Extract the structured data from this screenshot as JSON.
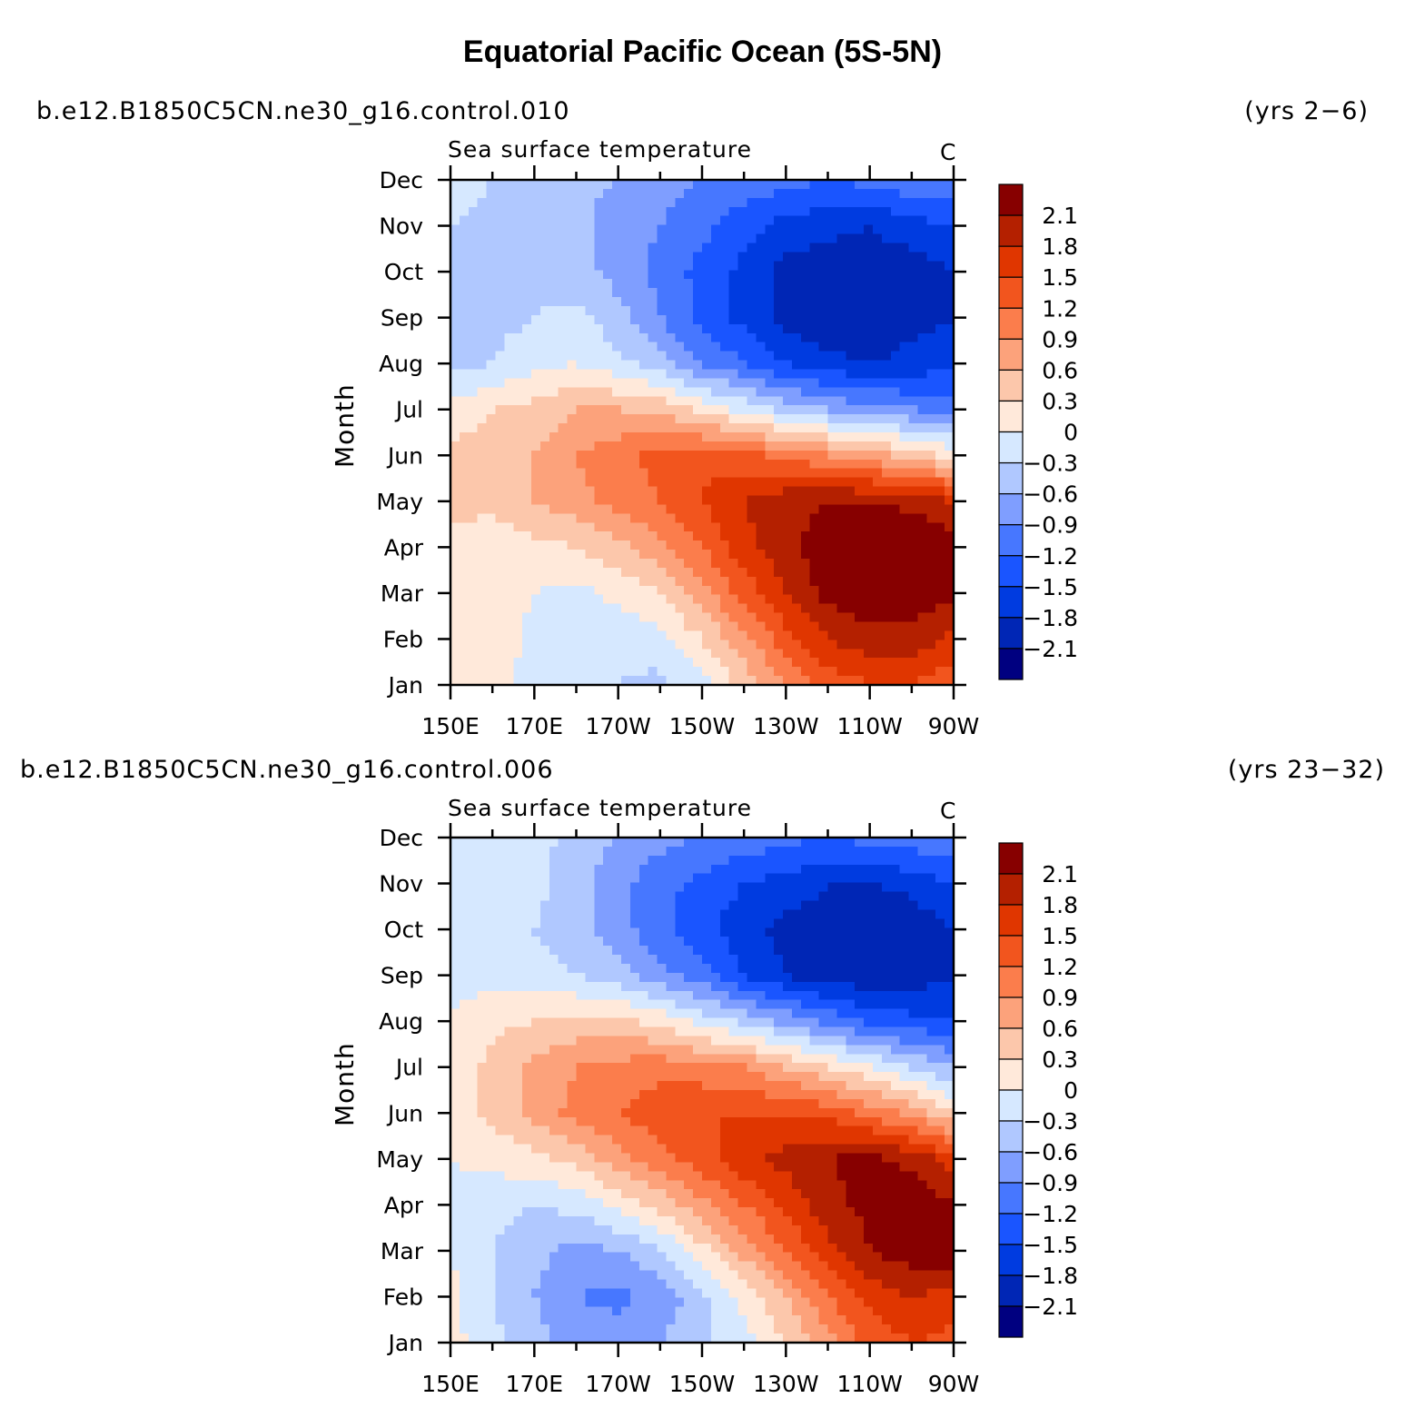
{
  "title": "Equatorial Pacific Ocean (5S-5N)",
  "panels": [
    {
      "case": "b.e12.B1850C5CN.ne30_g16.control.010",
      "years": "(yrs 2−6)",
      "variable": "Sea surface temperature",
      "units": "C",
      "ylabel": "Month"
    },
    {
      "case": "b.e12.B1850C5CN.ne30_g16.control.006",
      "years": "(yrs 23−32)",
      "variable": "Sea surface temperature",
      "units": "C",
      "ylabel": "Month"
    }
  ],
  "chart_data": [
    {
      "type": "heatmap",
      "title": "Sea surface temperature",
      "xlabel": "",
      "ylabel": "Month",
      "units": "C",
      "x_ticks": [
        "150E",
        "170E",
        "170W",
        "150W",
        "130W",
        "110W",
        "90W"
      ],
      "y_ticks": [
        "Jan",
        "Feb",
        "Mar",
        "Apr",
        "May",
        "Jun",
        "Jul",
        "Aug",
        "Sep",
        "Oct",
        "Nov",
        "Dec"
      ],
      "levels": [
        -2.1,
        -1.8,
        -1.5,
        -1.2,
        -0.9,
        -0.6,
        -0.3,
        0,
        0.3,
        0.6,
        0.9,
        1.2,
        1.5,
        1.8,
        2.1
      ],
      "colorbar_labels": [
        "2.1",
        "1.8",
        "1.5",
        "1.2",
        "0.9",
        "0.6",
        "0.3",
        "0",
        "−0.3",
        "−0.6",
        "−0.9",
        "−1.2",
        "−1.5",
        "−1.8",
        "−2.1"
      ],
      "colors": [
        "#000080",
        "#0026b5",
        "#003be0",
        "#1a55ff",
        "#4777ff",
        "#7f9eff",
        "#b0c8ff",
        "#d6e8ff",
        "#ffe9da",
        "#fcc7ab",
        "#fca27b",
        "#fb7d4c",
        "#f2551e",
        "#e03600",
        "#b42000",
        "#870000"
      ],
      "grid_lon": [
        150,
        160,
        170,
        180,
        190,
        200,
        210,
        220,
        230,
        240,
        250,
        260,
        270
      ],
      "grid_month": [
        1,
        2,
        3,
        4,
        5,
        6,
        7,
        8,
        9,
        10,
        11,
        12
      ],
      "values": [
        [
          0.1,
          0.1,
          -0.1,
          -0.2,
          -0.3,
          -0.4,
          -0.1,
          0.4,
          0.9,
          1.3,
          1.5,
          1.5,
          1.3
        ],
        [
          0.1,
          0.2,
          -0.1,
          -0.2,
          -0.2,
          -0.1,
          0.3,
          0.8,
          1.4,
          1.8,
          2.0,
          2.0,
          1.7
        ],
        [
          0.2,
          0.2,
          0.0,
          -0.1,
          0.1,
          0.3,
          0.8,
          1.3,
          1.8,
          2.2,
          2.3,
          2.3,
          2.2
        ],
        [
          0.2,
          0.1,
          0.2,
          0.3,
          0.5,
          0.8,
          1.2,
          1.7,
          2.0,
          2.3,
          2.4,
          2.4,
          2.3
        ],
        [
          0.4,
          0.4,
          0.6,
          0.8,
          1.0,
          1.2,
          1.5,
          1.8,
          2.0,
          2.1,
          2.1,
          2.0,
          1.8
        ],
        [
          0.4,
          0.4,
          0.6,
          0.9,
          1.1,
          1.3,
          1.4,
          1.3,
          1.1,
          0.9,
          0.7,
          0.5,
          0.2
        ],
        [
          0.1,
          0.3,
          0.4,
          0.6,
          0.6,
          0.5,
          0.2,
          -0.1,
          -0.4,
          -0.6,
          -0.8,
          -0.9,
          -1.0
        ],
        [
          -0.4,
          -0.3,
          -0.1,
          0.0,
          -0.2,
          -0.5,
          -0.9,
          -1.2,
          -1.5,
          -1.7,
          -1.8,
          -1.7,
          -1.6
        ],
        [
          -0.5,
          -0.4,
          -0.3,
          -0.2,
          -0.5,
          -0.9,
          -1.3,
          -1.6,
          -1.9,
          -2.1,
          -2.1,
          -1.9,
          -1.8
        ],
        [
          -0.5,
          -0.4,
          -0.4,
          -0.5,
          -0.7,
          -1.0,
          -1.3,
          -1.6,
          -1.9,
          -2.0,
          -2.0,
          -2.0,
          -1.8
        ],
        [
          -0.3,
          -0.4,
          -0.4,
          -0.5,
          -0.8,
          -0.9,
          -1.1,
          -1.4,
          -1.6,
          -1.7,
          -1.8,
          -1.6,
          -1.5
        ],
        [
          -0.1,
          -0.3,
          -0.4,
          -0.5,
          -0.6,
          -0.8,
          -0.9,
          -1.0,
          -1.1,
          -1.2,
          -1.1,
          -1.0,
          -0.9
        ]
      ]
    },
    {
      "type": "heatmap",
      "title": "Sea surface temperature",
      "xlabel": "",
      "ylabel": "Month",
      "units": "C",
      "x_ticks": [
        "150E",
        "170E",
        "170W",
        "150W",
        "130W",
        "110W",
        "90W"
      ],
      "y_ticks": [
        "Jan",
        "Feb",
        "Mar",
        "Apr",
        "May",
        "Jun",
        "Jul",
        "Aug",
        "Sep",
        "Oct",
        "Nov",
        "Dec"
      ],
      "levels": [
        -2.1,
        -1.8,
        -1.5,
        -1.2,
        -0.9,
        -0.6,
        -0.3,
        0,
        0.3,
        0.6,
        0.9,
        1.2,
        1.5,
        1.8,
        2.1
      ],
      "colorbar_labels": [
        "2.1",
        "1.8",
        "1.5",
        "1.2",
        "0.9",
        "0.6",
        "0.3",
        "0",
        "−0.3",
        "−0.6",
        "−0.9",
        "−1.2",
        "−1.5",
        "−1.8",
        "−2.1"
      ],
      "colors": [
        "#000080",
        "#0026b5",
        "#003be0",
        "#1a55ff",
        "#4777ff",
        "#7f9eff",
        "#b0c8ff",
        "#d6e8ff",
        "#ffe9da",
        "#fcc7ab",
        "#fca27b",
        "#fb7d4c",
        "#f2551e",
        "#e03600",
        "#b42000",
        "#870000"
      ],
      "grid_lon": [
        150,
        160,
        170,
        180,
        190,
        200,
        210,
        220,
        230,
        240,
        250,
        260,
        270
      ],
      "grid_month": [
        1,
        2,
        3,
        4,
        5,
        6,
        7,
        8,
        9,
        10,
        11,
        12
      ],
      "values": [
        [
          0.1,
          -0.2,
          -0.5,
          -0.7,
          -0.7,
          -0.6,
          -0.4,
          -0.1,
          0.3,
          0.8,
          1.3,
          1.5,
          1.4
        ],
        [
          0.1,
          -0.3,
          -0.6,
          -0.9,
          -1.0,
          -0.8,
          -0.4,
          0.1,
          0.6,
          1.2,
          1.6,
          1.8,
          1.7
        ],
        [
          0.0,
          -0.3,
          -0.5,
          -0.7,
          -0.6,
          -0.3,
          0.2,
          0.7,
          1.2,
          1.7,
          2.1,
          2.3,
          2.3
        ],
        [
          -0.1,
          -0.2,
          -0.3,
          -0.2,
          0.1,
          0.4,
          0.8,
          1.2,
          1.6,
          2.0,
          2.2,
          2.3,
          2.1
        ],
        [
          0.0,
          0.1,
          0.2,
          0.4,
          0.8,
          1.1,
          1.4,
          1.7,
          1.9,
          2.1,
          2.2,
          2.0,
          1.7
        ],
        [
          0.1,
          0.4,
          0.7,
          1.0,
          1.2,
          1.4,
          1.5,
          1.5,
          1.5,
          1.4,
          1.1,
          0.8,
          0.3
        ],
        [
          0.1,
          0.4,
          0.7,
          0.9,
          1.0,
          1.1,
          1.0,
          0.9,
          0.6,
          0.3,
          0.0,
          -0.3,
          -0.6
        ],
        [
          0.0,
          0.2,
          0.3,
          0.4,
          0.4,
          0.2,
          -0.1,
          -0.4,
          -0.7,
          -1.0,
          -1.3,
          -1.4,
          -1.5
        ],
        [
          -0.1,
          -0.1,
          -0.2,
          -0.3,
          -0.5,
          -0.8,
          -1.1,
          -1.5,
          -1.8,
          -2.0,
          -2.0,
          -2.0,
          -1.8
        ],
        [
          -0.2,
          -0.2,
          -0.3,
          -0.5,
          -0.8,
          -1.1,
          -1.4,
          -1.7,
          -1.9,
          -2.0,
          -2.1,
          -2.0,
          -1.8
        ],
        [
          -0.2,
          -0.2,
          -0.2,
          -0.5,
          -0.8,
          -1.1,
          -1.3,
          -1.5,
          -1.6,
          -1.8,
          -1.8,
          -1.7,
          -1.5
        ],
        [
          -0.1,
          -0.1,
          -0.2,
          -0.4,
          -0.6,
          -0.8,
          -0.9,
          -1.0,
          -1.1,
          -1.2,
          -1.1,
          -1.0,
          -0.9
        ]
      ]
    }
  ]
}
